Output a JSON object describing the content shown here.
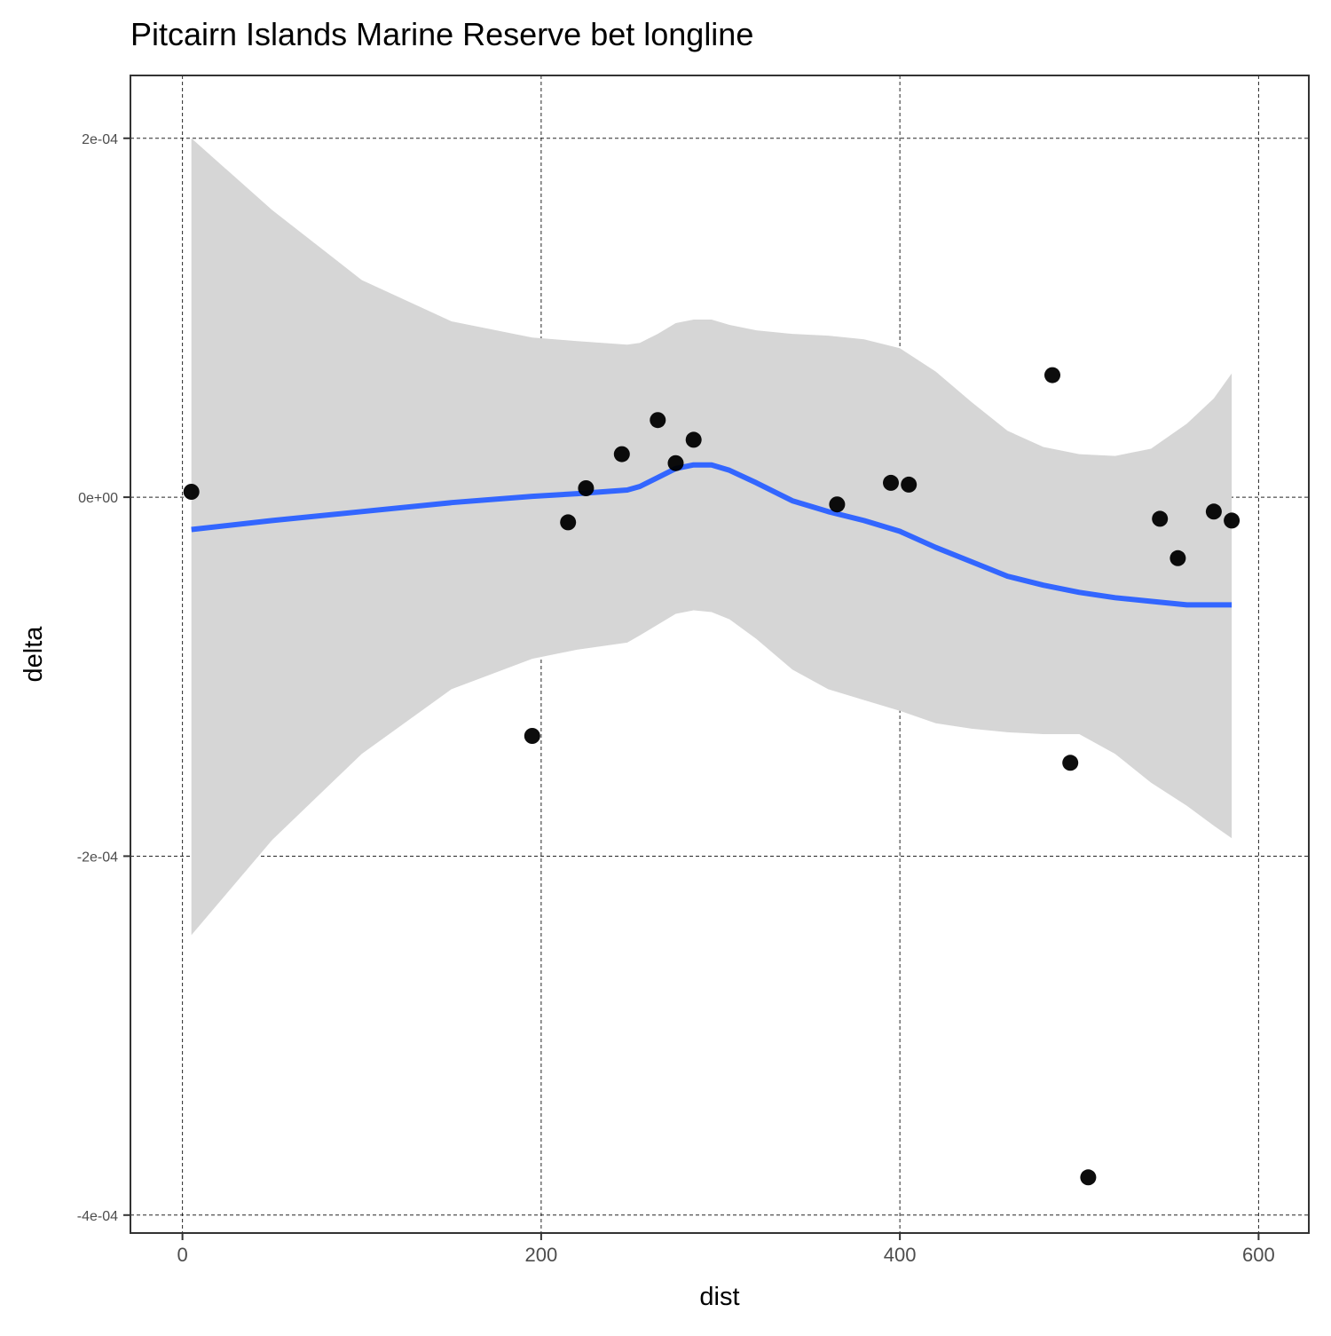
{
  "chart_data": {
    "type": "scatter",
    "title": "Pitcairn Islands Marine Reserve bet longline",
    "xlabel": "dist",
    "ylabel": "delta",
    "xlim": [
      -29,
      628
    ],
    "ylim": [
      -0.00041,
      0.000235
    ],
    "x_ticks": [
      0,
      200,
      400,
      600
    ],
    "x_tick_labels": [
      "0",
      "200",
      "400",
      "600"
    ],
    "y_ticks": [
      0.0002,
      0,
      -0.0002,
      -0.0004
    ],
    "y_tick_labels": [
      "2e-04",
      "0e+00",
      "-2e-04",
      "-4e-04"
    ],
    "grid": true,
    "grid_style": "dashed",
    "colors": {
      "points": "#000000",
      "smooth_line": "#3366FF",
      "ribbon": "#d6d6d6"
    },
    "series": [
      {
        "type": "points",
        "x": [
          5,
          195,
          215,
          225,
          245,
          265,
          275,
          285,
          365,
          395,
          405,
          485,
          495,
          505,
          545,
          555,
          575,
          585
        ],
        "y": [
          3e-06,
          -0.000133,
          -1.4e-05,
          5e-06,
          2.4e-05,
          4.3e-05,
          1.9e-05,
          3.2e-05,
          -4e-06,
          8e-06,
          7e-06,
          6.8e-05,
          -0.000148,
          -0.000379,
          -1.2e-05,
          -3.4e-05,
          -8e-06,
          -1.3e-05
        ]
      },
      {
        "type": "smooth",
        "x": [
          5,
          50,
          100,
          150,
          195,
          220,
          248,
          255,
          265,
          275,
          285,
          295,
          305,
          320,
          340,
          360,
          380,
          400,
          420,
          440,
          460,
          480,
          500,
          520,
          540,
          560,
          575,
          585
        ],
        "y": [
          -1.8e-05,
          -1.3e-05,
          -8e-06,
          -3e-06,
          5e-07,
          2e-06,
          4e-06,
          6e-06,
          1.1e-05,
          1.6e-05,
          1.8e-05,
          1.8e-05,
          1.5e-05,
          8e-06,
          -2e-06,
          -8e-06,
          -1.3e-05,
          -1.9e-05,
          -2.8e-05,
          -3.6e-05,
          -4.4e-05,
          -4.9e-05,
          -5.3e-05,
          -5.6e-05,
          -5.8e-05,
          -6e-05,
          -6e-05,
          -6e-05
        ],
        "ci_upper": [
          0.0002,
          0.00016,
          0.000121,
          9.8e-05,
          8.9e-05,
          8.7e-05,
          8.5e-05,
          8.6e-05,
          9.1e-05,
          9.7e-05,
          9.9e-05,
          9.9e-05,
          9.6e-05,
          9.3e-05,
          9.1e-05,
          9e-05,
          8.8e-05,
          8.3e-05,
          7e-05,
          5.3e-05,
          3.7e-05,
          2.8e-05,
          2.4e-05,
          2.3e-05,
          2.7e-05,
          4.1e-05,
          5.5e-05,
          6.9e-05
        ],
        "ci_lower": [
          -0.000244,
          -0.000191,
          -0.000143,
          -0.000107,
          -9e-05,
          -8.5e-05,
          -8.1e-05,
          -7.7e-05,
          -7.1e-05,
          -6.5e-05,
          -6.3e-05,
          -6.4e-05,
          -6.8e-05,
          -7.9e-05,
          -9.6e-05,
          -0.000107,
          -0.000113,
          -0.000119,
          -0.000126,
          -0.000129,
          -0.000131,
          -0.000132,
          -0.000132,
          -0.000143,
          -0.000159,
          -0.000172,
          -0.000183,
          -0.00019
        ]
      }
    ]
  }
}
